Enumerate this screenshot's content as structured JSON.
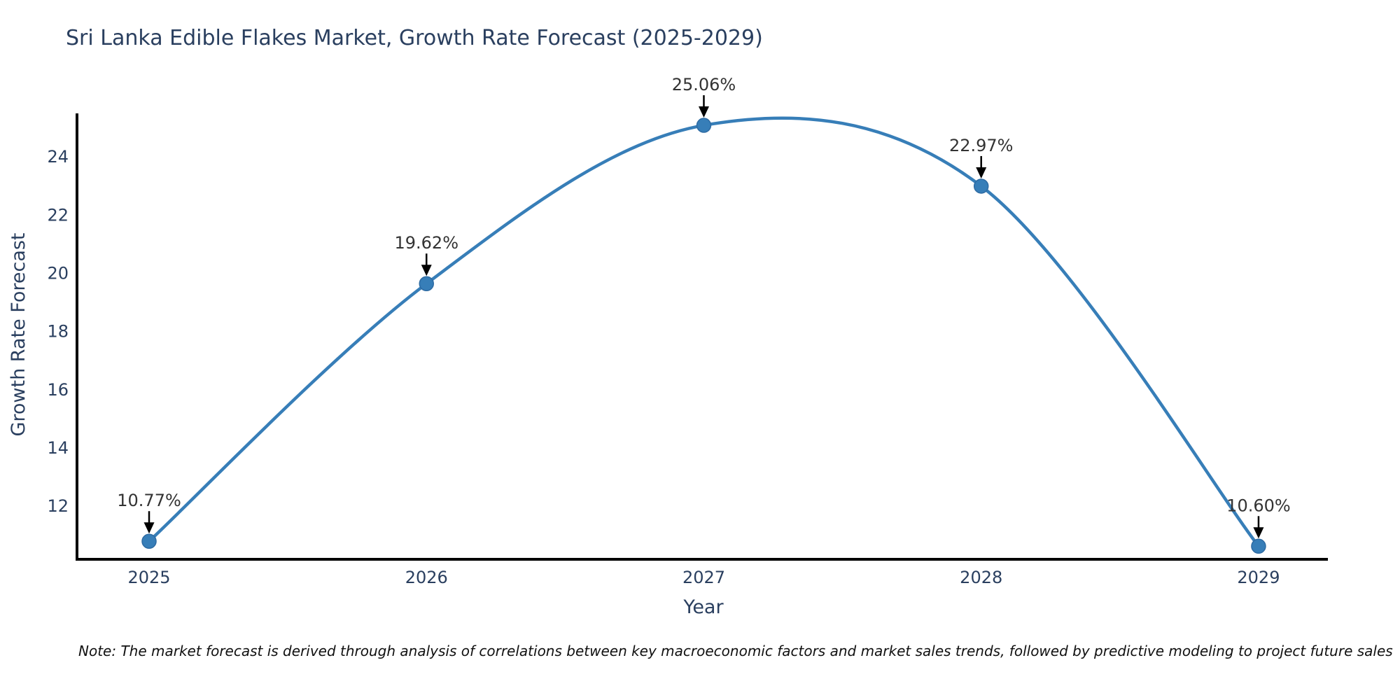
{
  "title": "Sri Lanka Edible Flakes Market, Growth Rate Forecast (2025-2029)",
  "note": "Note: The market forecast is derived through analysis of correlations between key macroeconomic factors and market sales trends, followed by predictive modeling to project future sales",
  "chart_data": {
    "type": "line",
    "title": "Sri Lanka Edible Flakes Market, Growth Rate Forecast (2025-2029)",
    "xlabel": "Year",
    "ylabel": "Growth Rate Forecast",
    "x": [
      2025,
      2026,
      2027,
      2028,
      2029
    ],
    "y": [
      10.77,
      19.62,
      25.06,
      22.97,
      10.6
    ],
    "point_labels": [
      "10.77%",
      "19.62%",
      "25.06%",
      "22.97%",
      "10.60%"
    ],
    "yticks": [
      12,
      14,
      16,
      18,
      20,
      22,
      24
    ],
    "xticks": [
      2025,
      2026,
      2027,
      2028,
      2029
    ],
    "ylim": [
      10.15,
      25.47
    ],
    "xlim": [
      2024.74,
      2029.25
    ],
    "line_shape": "spline",
    "grid": false,
    "legend": "none",
    "colors": {
      "line": "#377eb8",
      "marker": "#377eb8",
      "marker_edge": "#2e6ba3",
      "axis": "#000000",
      "tick_label": "#2a3f5f",
      "axis_title": "#2a3f5f",
      "chart_title": "#2a3f5f",
      "annotation_text": "#333333",
      "annotation_arrow": "#000000",
      "background": "#ffffff"
    }
  }
}
